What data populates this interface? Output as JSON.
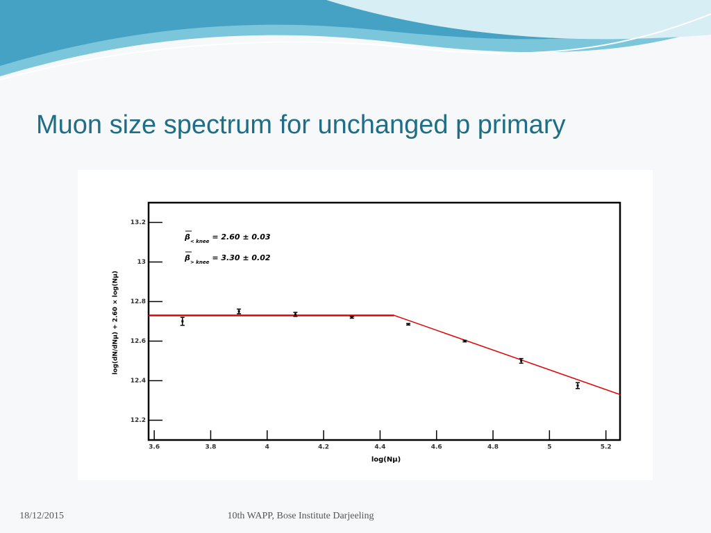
{
  "slide": {
    "title": "Muon size spectrum for unchanged p primary",
    "footer_date": "18/12/2015",
    "footer_text": "10th WAPP, Bose Institute Darjeeling"
  },
  "chart_data": {
    "type": "scatter",
    "x_label": "log(Nμ)",
    "y_label": "log(dN/dNμ) + 2.60 × log(Nμ)",
    "annotations": [
      {
        "symbol": "β",
        "subscript": "< knee",
        "text": "= 2.60 ± 0.03"
      },
      {
        "symbol": "β",
        "subscript": "> knee",
        "text": "= 3.30 ± 0.02"
      }
    ],
    "x": [
      3.7,
      3.9,
      4.1,
      4.3,
      4.5,
      4.7,
      4.9,
      5.1
    ],
    "values": [
      12.7,
      12.75,
      12.735,
      12.72,
      12.685,
      12.6,
      12.5,
      12.375
    ],
    "errors": [
      0.02,
      0.012,
      0.01,
      0.004,
      0.004,
      0.004,
      0.012,
      0.015
    ],
    "color": "#000000",
    "fits": [
      {
        "x": [
          3.58,
          4.45
        ],
        "values": [
          12.73,
          12.73
        ],
        "color": "#e00000"
      },
      {
        "x": [
          4.45,
          5.25
        ],
        "values": [
          12.73,
          12.33
        ],
        "color": "#e00000"
      }
    ],
    "xlim": [
      3.58,
      5.25
    ],
    "ylim": [
      12.1,
      13.3
    ],
    "xticks": [
      3.6,
      3.8,
      4,
      4.2,
      4.4,
      4.6,
      4.8,
      5,
      5.2
    ],
    "yticks": [
      12.2,
      12.4,
      12.6,
      12.8,
      13,
      13.2
    ]
  }
}
